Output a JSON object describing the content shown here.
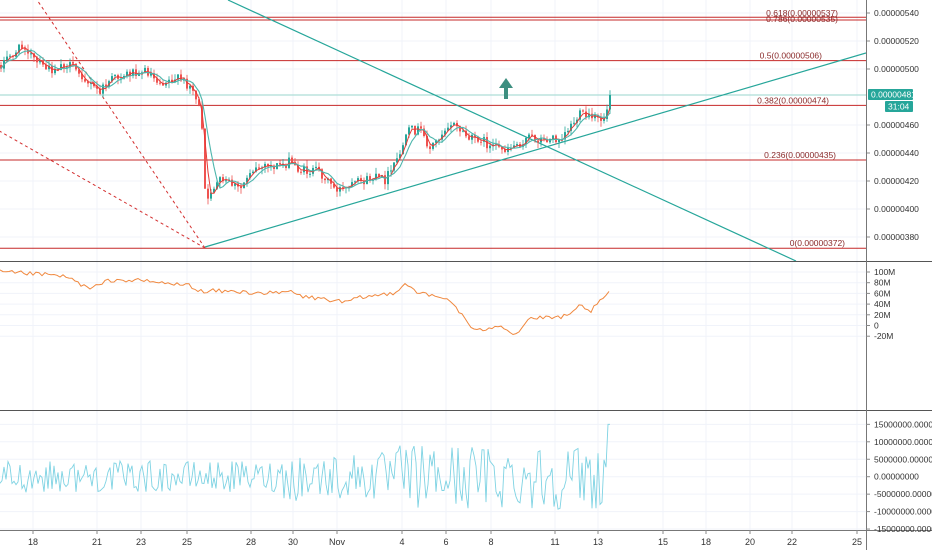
{
  "colors": {
    "background": "#ffffff",
    "grid": "#f0f3fa",
    "fib_line": "#c62828",
    "trend_line": "#26a69a",
    "candle_up": "#26a69a",
    "candle_down": "#ef5350",
    "ma_fast": "#e53935",
    "ma_slow": "#4db6ac",
    "obv": "#f0883e",
    "oscillator": "#7fd3e3",
    "pane_separator": "#555555",
    "price_tag": "#26a69a",
    "arrow": "#3d8f80",
    "axis_text": "#333333",
    "dashed_fan": "#d32f2f"
  },
  "chart_data": [
    {
      "type": "candlestick",
      "pane": "price",
      "ylim": [
        3.6e-06,
        5.4e-06
      ],
      "y_ticks": [
        "0.00000540",
        "0.00000520",
        "0.00000500",
        "0.00000460",
        "0.00000440",
        "0.00000420",
        "0.00000400",
        "0.00000380"
      ],
      "fib_levels": [
        {
          "label": "0.618(0.00000537)",
          "value": 5.37e-06
        },
        {
          "label": "0.786(0.00000535)",
          "value": 5.35e-06
        },
        {
          "label": "0.5(0.00000506)",
          "value": 5.06e-06
        },
        {
          "label": "0.382(0.00000474)",
          "value": 4.74e-06
        },
        {
          "label": "0.236(0.00000435)",
          "value": 4.35e-06
        },
        {
          "label": "0(0.00000372)",
          "value": 3.72e-06
        }
      ],
      "last_price": "0.00000481",
      "countdown": "31:04",
      "overlays": [
        "EMA fast",
        "EMA slow",
        "Descending trendline",
        "Ascending trendline",
        "Fib fan (dashed)"
      ],
      "arrow": "up-arrow",
      "grid": true
    },
    {
      "type": "line",
      "pane": "volume-oscillator",
      "ylim": [
        -25,
        105
      ],
      "y_ticks": [
        "100M",
        "80M",
        "60M",
        "40M",
        "20M",
        "0",
        "-20M"
      ],
      "y_tick_values": [
        100,
        80,
        60,
        40,
        20,
        0,
        -20
      ],
      "anchors_x": [
        0,
        30,
        60,
        70,
        90,
        110,
        140,
        170,
        190,
        205,
        210,
        250,
        280,
        290,
        300,
        330,
        345,
        360,
        380,
        395,
        405,
        420,
        440,
        450,
        465,
        475,
        500,
        515,
        530,
        550,
        570,
        580,
        590,
        600,
        610
      ],
      "anchors_y": [
        100,
        97,
        93,
        88,
        68,
        85,
        84,
        78,
        75,
        60,
        65,
        62,
        60,
        65,
        55,
        48,
        43,
        52,
        57,
        62,
        79,
        60,
        52,
        48,
        12,
        -12,
        2,
        -18,
        14,
        14,
        18,
        38,
        26,
        44,
        63
      ]
    },
    {
      "type": "line",
      "pane": "oscillator",
      "ylim": [
        -15000000,
        16000000
      ],
      "y_ticks": [
        "15000000.00000000",
        "10000000.00000000",
        "5000000.00000000",
        "0.00000000",
        "-5000000.00000000",
        "-10000000.00000000",
        "-15000000.00000000"
      ],
      "y_tick_values": [
        15000000,
        10000000,
        5000000,
        0,
        -5000000,
        -10000000,
        -15000000
      ]
    }
  ],
  "x_ticks": [
    "18",
    "21",
    "23",
    "25",
    "28",
    "30",
    "Nov",
    "4",
    "6",
    "8",
    "11",
    "13",
    "15",
    "18",
    "20",
    "22",
    "25"
  ]
}
